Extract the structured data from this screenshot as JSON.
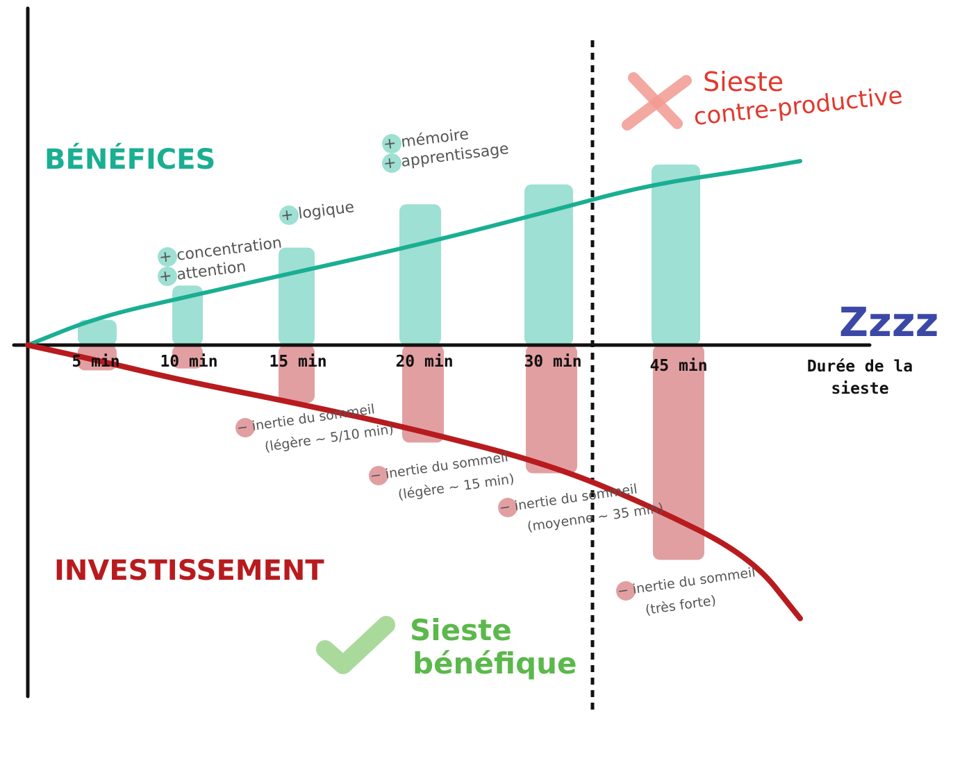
{
  "chart_data": {
    "type": "bar",
    "categories": [
      "5 min",
      "10 min",
      "15 min",
      "20 min",
      "30 min",
      "45 min"
    ],
    "xlabel": "Durée de la sieste",
    "xlabel_lines": [
      "Durée de la",
      "sieste"
    ],
    "zzz": "Zzzz",
    "series": [
      {
        "name": "BÉNÉFICES",
        "color": "#9ee0d3",
        "line_color": "#1aae92",
        "values": [
          14,
          33,
          54,
          78,
          89,
          100
        ]
      },
      {
        "name": "INVESTISSEMENT",
        "color": "#e29fa1",
        "line_color": "#b81b1e",
        "values": [
          -14,
          -13,
          -32,
          -54,
          -71,
          -119
        ]
      }
    ],
    "benefit_curve": [
      0,
      16,
      28,
      42,
      58,
      77,
      92,
      101,
      106
    ],
    "investment_curve": [
      0,
      -10,
      -24,
      -38,
      -56,
      -78,
      -104,
      -138,
      -179
    ],
    "curve_x": [
      0,
      1,
      2,
      3,
      4,
      5,
      6,
      7,
      8
    ],
    "threshold_after_category": "30 min",
    "benefit_annotations": [
      {
        "category": "10 min",
        "lines": [
          "+ concentration",
          "+ attention"
        ]
      },
      {
        "category": "15 min",
        "lines": [
          "+ logique"
        ]
      },
      {
        "category": "20 min",
        "lines": [
          "+ mémoire",
          "+ apprentissage"
        ]
      }
    ],
    "investment_annotations": [
      {
        "category": "15 min",
        "lines": [
          "− inertie du sommeil",
          "(légère ~ 5/10 min)"
        ]
      },
      {
        "category": "20 min",
        "lines": [
          "− inertie du sommeil",
          "(légère ~ 15 min)"
        ]
      },
      {
        "category": "30 min",
        "lines": [
          "− inertie du sommeil",
          "(moyenne ~ 35 min)"
        ]
      },
      {
        "category": "45 min",
        "lines": [
          "− inertie du sommeil",
          "(très forte)"
        ]
      }
    ],
    "zones": {
      "good": {
        "line1": "Sieste",
        "line2": "bénéfique",
        "color": "#5cb84c",
        "check_color": "#a9d99b"
      },
      "bad": {
        "line1": "Sieste",
        "line2": "contre-productive",
        "color": "#e2382d",
        "cross_color": "#f29a92"
      }
    },
    "legend_placement": "left"
  }
}
